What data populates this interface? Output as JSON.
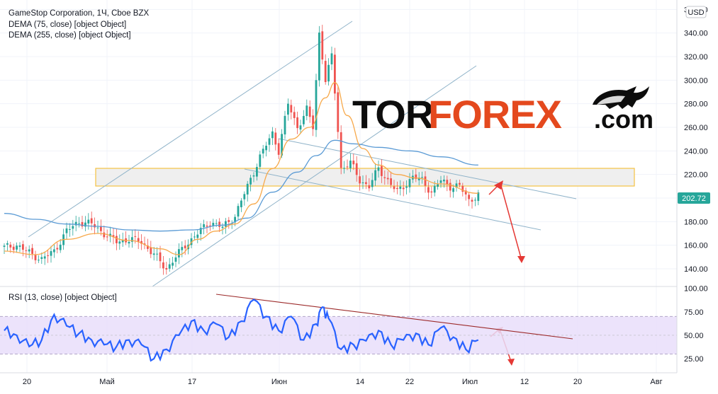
{
  "header": {
    "symbol_line": "GameStop Corporation, 1Ч, Cboe BZX",
    "ma1_label": "DEMA (75, close) [object Object]",
    "ma2_label": "DEMA (255, close) [object Object]",
    "rsi_label": "RSI (13, close) [object Object]",
    "currency": "USD",
    "last_price": "202.72"
  },
  "watermark": {
    "part1": "TOR",
    "part2": "FOREX",
    "part3": ".com"
  },
  "colors": {
    "up": "#26a69a",
    "down": "#ef5350",
    "dema75": "#f7a94b",
    "dema255": "#5b9bd5",
    "channel": "#8fb3c9",
    "zone_fill": "#eeeeee",
    "zone_border": "#f5c242",
    "rsi_line": "#2962ff",
    "rsi_band": "#e9defa",
    "rsi_trend": "#b71c1c",
    "arrow": "#e53935",
    "price_tag": "#26a69a"
  },
  "chart_data": [
    {
      "type": "candlestick",
      "title": "GameStop Corporation, 1Ч, Cboe BZX",
      "ylabel": "USD",
      "ylim": [
        125,
        368
      ],
      "y_ticks": [
        140,
        160,
        180,
        200,
        220,
        240,
        260,
        280,
        300,
        320,
        340,
        360
      ],
      "x_tick_labels": [
        "20",
        "Май",
        "17",
        "Июн",
        "14",
        "22",
        "Июл",
        "12",
        "20",
        "Авг"
      ],
      "key_prices": [
        {
          "x": 0,
          "y": 158
        },
        {
          "x": 4,
          "y": 160
        },
        {
          "x": 7,
          "y": 155
        },
        {
          "x": 12,
          "y": 148
        },
        {
          "x": 16,
          "y": 155
        },
        {
          "x": 20,
          "y": 172
        },
        {
          "x": 24,
          "y": 180
        },
        {
          "x": 28,
          "y": 178
        },
        {
          "x": 32,
          "y": 170
        },
        {
          "x": 36,
          "y": 163
        },
        {
          "x": 40,
          "y": 165
        },
        {
          "x": 44,
          "y": 163
        },
        {
          "x": 48,
          "y": 152
        },
        {
          "x": 52,
          "y": 140
        },
        {
          "x": 55,
          "y": 150
        },
        {
          "x": 58,
          "y": 160
        },
        {
          "x": 62,
          "y": 170
        },
        {
          "x": 66,
          "y": 180
        },
        {
          "x": 70,
          "y": 175
        },
        {
          "x": 74,
          "y": 185
        },
        {
          "x": 78,
          "y": 210
        },
        {
          "x": 82,
          "y": 235
        },
        {
          "x": 86,
          "y": 255
        },
        {
          "x": 88,
          "y": 240
        },
        {
          "x": 91,
          "y": 280
        },
        {
          "x": 94,
          "y": 260
        },
        {
          "x": 97,
          "y": 275
        },
        {
          "x": 99,
          "y": 260
        },
        {
          "x": 101,
          "y": 340
        },
        {
          "x": 103,
          "y": 300
        },
        {
          "x": 105,
          "y": 320
        },
        {
          "x": 106,
          "y": 290
        },
        {
          "x": 108,
          "y": 225
        },
        {
          "x": 111,
          "y": 230
        },
        {
          "x": 114,
          "y": 215
        },
        {
          "x": 117,
          "y": 210
        },
        {
          "x": 120,
          "y": 225
        },
        {
          "x": 123,
          "y": 215
        },
        {
          "x": 126,
          "y": 205
        },
        {
          "x": 128,
          "y": 210
        },
        {
          "x": 131,
          "y": 218
        },
        {
          "x": 134,
          "y": 215
        },
        {
          "x": 137,
          "y": 205
        },
        {
          "x": 140,
          "y": 215
        },
        {
          "x": 143,
          "y": 210
        },
        {
          "x": 146,
          "y": 210
        },
        {
          "x": 149,
          "y": 198
        },
        {
          "x": 152,
          "y": 203
        }
      ],
      "dema75": [
        {
          "x": 0,
          "y": 155
        },
        {
          "x": 10,
          "y": 152
        },
        {
          "x": 20,
          "y": 165
        },
        {
          "x": 30,
          "y": 170
        },
        {
          "x": 40,
          "y": 164
        },
        {
          "x": 50,
          "y": 157
        },
        {
          "x": 56,
          "y": 152
        },
        {
          "x": 62,
          "y": 165
        },
        {
          "x": 68,
          "y": 172
        },
        {
          "x": 74,
          "y": 178
        },
        {
          "x": 80,
          "y": 195
        },
        {
          "x": 86,
          "y": 225
        },
        {
          "x": 92,
          "y": 250
        },
        {
          "x": 98,
          "y": 260
        },
        {
          "x": 103,
          "y": 285
        },
        {
          "x": 106,
          "y": 298
        },
        {
          "x": 110,
          "y": 270
        },
        {
          "x": 115,
          "y": 242
        },
        {
          "x": 120,
          "y": 228
        },
        {
          "x": 126,
          "y": 220
        },
        {
          "x": 132,
          "y": 217
        },
        {
          "x": 140,
          "y": 212
        },
        {
          "x": 152,
          "y": 204
        }
      ],
      "dema255": [
        {
          "x": 0,
          "y": 187
        },
        {
          "x": 10,
          "y": 182
        },
        {
          "x": 20,
          "y": 178
        },
        {
          "x": 30,
          "y": 176
        },
        {
          "x": 40,
          "y": 173
        },
        {
          "x": 50,
          "y": 172
        },
        {
          "x": 60,
          "y": 173
        },
        {
          "x": 70,
          "y": 177
        },
        {
          "x": 78,
          "y": 183
        },
        {
          "x": 86,
          "y": 205
        },
        {
          "x": 94,
          "y": 222
        },
        {
          "x": 100,
          "y": 236
        },
        {
          "x": 106,
          "y": 249
        },
        {
          "x": 112,
          "y": 246
        },
        {
          "x": 120,
          "y": 243
        },
        {
          "x": 130,
          "y": 240
        },
        {
          "x": 140,
          "y": 235
        },
        {
          "x": 152,
          "y": 228
        }
      ],
      "resistance_zone": [
        212,
        228
      ]
    },
    {
      "type": "line",
      "title": "RSI (13, close) [object Object]",
      "ylim": [
        10,
        102
      ],
      "y_ticks": [
        25,
        50,
        75,
        100
      ],
      "y_tick_labels": [
        "25.00",
        "50.00",
        "75.00",
        "100.00"
      ],
      "band": [
        30,
        70
      ],
      "rsi": [
        {
          "x": 0,
          "y": 55
        },
        {
          "x": 4,
          "y": 50
        },
        {
          "x": 8,
          "y": 38
        },
        {
          "x": 12,
          "y": 45
        },
        {
          "x": 16,
          "y": 72
        },
        {
          "x": 20,
          "y": 60
        },
        {
          "x": 24,
          "y": 52
        },
        {
          "x": 28,
          "y": 45
        },
        {
          "x": 32,
          "y": 40
        },
        {
          "x": 36,
          "y": 38
        },
        {
          "x": 40,
          "y": 45
        },
        {
          "x": 44,
          "y": 40
        },
        {
          "x": 48,
          "y": 25
        },
        {
          "x": 52,
          "y": 35
        },
        {
          "x": 56,
          "y": 50
        },
        {
          "x": 60,
          "y": 65
        },
        {
          "x": 64,
          "y": 55
        },
        {
          "x": 68,
          "y": 62
        },
        {
          "x": 72,
          "y": 48
        },
        {
          "x": 76,
          "y": 65
        },
        {
          "x": 80,
          "y": 88
        },
        {
          "x": 84,
          "y": 70
        },
        {
          "x": 88,
          "y": 55
        },
        {
          "x": 92,
          "y": 70
        },
        {
          "x": 96,
          "y": 45
        },
        {
          "x": 100,
          "y": 62
        },
        {
          "x": 102,
          "y": 80
        },
        {
          "x": 104,
          "y": 68
        },
        {
          "x": 108,
          "y": 35
        },
        {
          "x": 112,
          "y": 40
        },
        {
          "x": 116,
          "y": 44
        },
        {
          "x": 120,
          "y": 55
        },
        {
          "x": 124,
          "y": 40
        },
        {
          "x": 128,
          "y": 45
        },
        {
          "x": 132,
          "y": 52
        },
        {
          "x": 136,
          "y": 40
        },
        {
          "x": 140,
          "y": 58
        },
        {
          "x": 144,
          "y": 48
        },
        {
          "x": 148,
          "y": 35
        },
        {
          "x": 152,
          "y": 45
        }
      ]
    }
  ]
}
